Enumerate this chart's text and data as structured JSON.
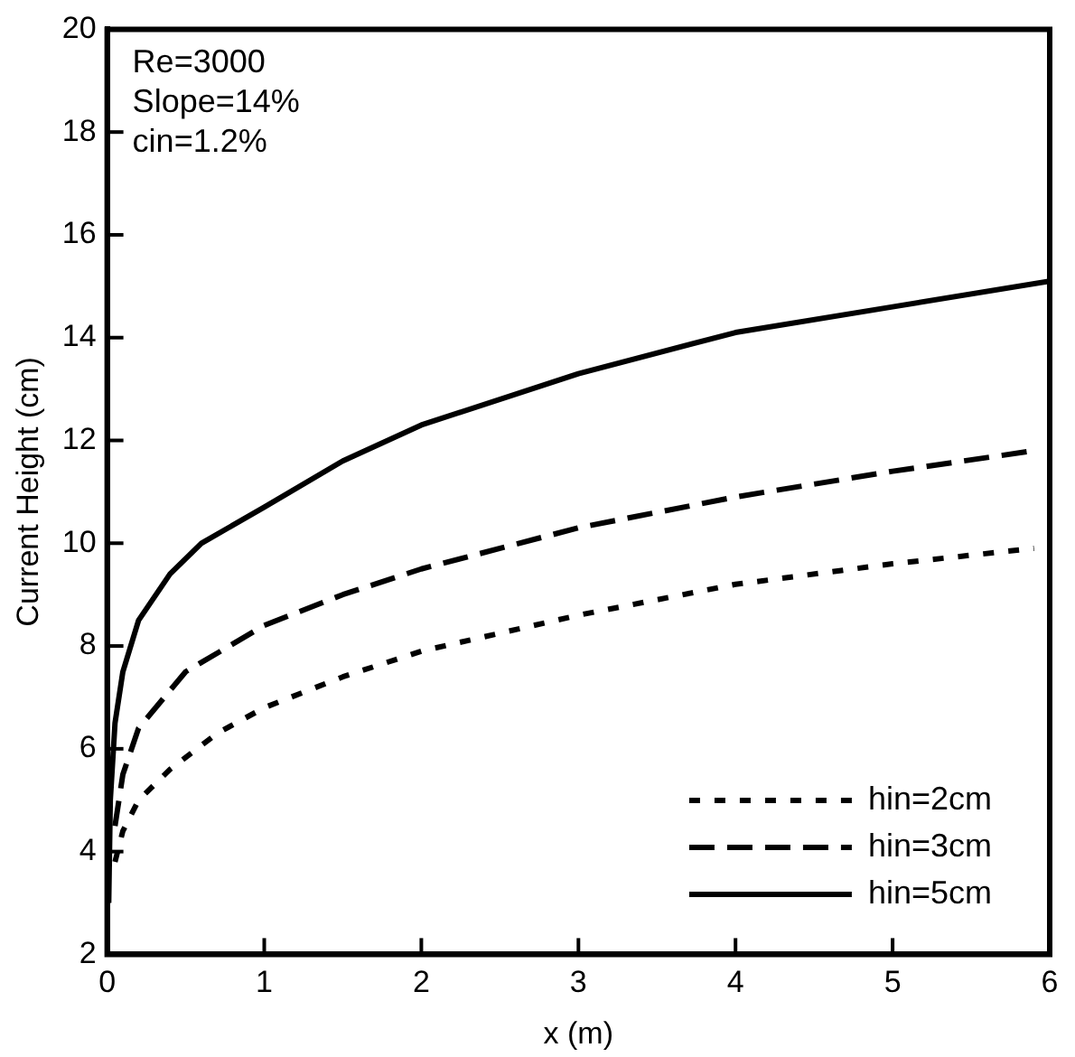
{
  "chart_data": {
    "type": "line",
    "xlabel": "x (m)",
    "ylabel": "Current Height (cm)",
    "annotations": [
      "Re=3000",
      "Slope=14%",
      "cin=1.2%"
    ],
    "xlim": [
      0,
      6
    ],
    "xticks": [
      0,
      1,
      2,
      3,
      4,
      5,
      6
    ],
    "ylim": [
      2,
      20
    ],
    "yticks": [
      2,
      4,
      6,
      8,
      10,
      12,
      14,
      16,
      18,
      20
    ],
    "grid": false,
    "legend": "bottom right",
    "marker": "none",
    "series": [
      {
        "name": "hin=2cm",
        "color": "#000000",
        "line_style": "dotted",
        "x": [
          0.05,
          0.1,
          0.2,
          0.4,
          0.7,
          1,
          1.5,
          2,
          3,
          4,
          5,
          5.9
        ],
        "values": [
          3.8,
          4.4,
          5.0,
          5.6,
          6.3,
          6.8,
          7.4,
          7.9,
          8.6,
          9.2,
          9.6,
          9.9
        ]
      },
      {
        "name": "hin=3cm",
        "color": "#000000",
        "line_style": "dashed",
        "x": [
          0.05,
          0.1,
          0.2,
          0.5,
          1,
          1.5,
          2,
          3,
          4,
          5,
          5.9
        ],
        "values": [
          4.5,
          5.5,
          6.4,
          7.5,
          8.4,
          9.0,
          9.5,
          10.3,
          10.9,
          11.4,
          11.8
        ]
      },
      {
        "name": "hin=5cm",
        "color": "#000000",
        "line_style": "solid",
        "x": [
          0.01,
          0.02,
          0.05,
          0.1,
          0.2,
          0.4,
          0.6,
          1,
          1.5,
          2,
          3,
          4,
          5,
          6
        ],
        "values": [
          3.0,
          5.0,
          6.5,
          7.5,
          8.5,
          9.4,
          10.0,
          10.7,
          11.6,
          12.3,
          13.3,
          14.1,
          14.6,
          15.1
        ]
      }
    ]
  }
}
